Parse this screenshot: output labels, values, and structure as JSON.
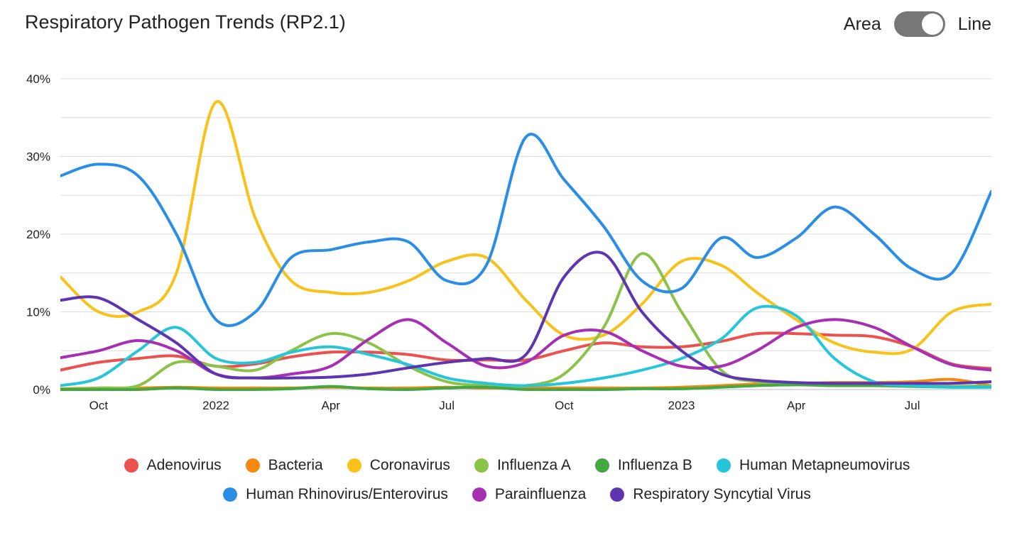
{
  "header": {
    "title": "Respiratory Pathogen Trends (RP2.1)",
    "toggle_left": "Area",
    "toggle_right": "Line",
    "toggle_state": "Line"
  },
  "chart_data": {
    "type": "line",
    "title": "Respiratory Pathogen Trends (RP2.1)",
    "xlabel": "",
    "ylabel": "",
    "x_range": [
      "2021-09-01",
      "2023-09-01"
    ],
    "ylim": [
      0,
      40
    ],
    "y_ticks": [
      0,
      10,
      20,
      30,
      40
    ],
    "y_tick_labels": [
      "0%",
      "10%",
      "20%",
      "30%",
      "40%"
    ],
    "x_ticks": [
      {
        "date": "2021-10-01",
        "label": "Oct"
      },
      {
        "date": "2022-01-01",
        "label": "2022"
      },
      {
        "date": "2022-04-01",
        "label": "Apr"
      },
      {
        "date": "2022-07-01",
        "label": "Jul"
      },
      {
        "date": "2022-10-01",
        "label": "Oct"
      },
      {
        "date": "2023-01-01",
        "label": "2023"
      },
      {
        "date": "2023-04-01",
        "label": "Apr"
      },
      {
        "date": "2023-07-01",
        "label": "Jul"
      }
    ],
    "grid": true,
    "legend_position": "bottom",
    "series": [
      {
        "name": "Adenovirus",
        "color": "#e9524f",
        "points": [
          [
            "2021-09-01",
            2.5
          ],
          [
            "2021-10-01",
            3.5
          ],
          [
            "2021-11-01",
            4.0
          ],
          [
            "2021-12-01",
            4.3
          ],
          [
            "2022-01-01",
            3.0
          ],
          [
            "2022-02-01",
            3.3
          ],
          [
            "2022-03-01",
            4.2
          ],
          [
            "2022-04-01",
            4.8
          ],
          [
            "2022-05-01",
            4.8
          ],
          [
            "2022-06-01",
            4.5
          ],
          [
            "2022-07-01",
            3.8
          ],
          [
            "2022-08-01",
            3.8
          ],
          [
            "2022-09-01",
            3.8
          ],
          [
            "2022-10-01",
            5.0
          ],
          [
            "2022-11-01",
            6.0
          ],
          [
            "2022-12-01",
            5.5
          ],
          [
            "2023-01-01",
            5.5
          ],
          [
            "2023-02-01",
            6.2
          ],
          [
            "2023-03-01",
            7.2
          ],
          [
            "2023-04-01",
            7.2
          ],
          [
            "2023-05-01",
            7.0
          ],
          [
            "2023-06-01",
            6.8
          ],
          [
            "2023-07-01",
            5.5
          ],
          [
            "2023-08-01",
            3.3
          ],
          [
            "2023-09-01",
            2.7
          ]
        ]
      },
      {
        "name": "Bacteria",
        "color": "#f5890f",
        "points": [
          [
            "2021-09-01",
            0.1
          ],
          [
            "2021-10-01",
            0.2
          ],
          [
            "2021-11-01",
            0.2
          ],
          [
            "2021-12-01",
            0.3
          ],
          [
            "2022-01-01",
            0.2
          ],
          [
            "2022-02-01",
            0.2
          ],
          [
            "2022-03-01",
            0.2
          ],
          [
            "2022-04-01",
            0.3
          ],
          [
            "2022-05-01",
            0.2
          ],
          [
            "2022-06-01",
            0.2
          ],
          [
            "2022-07-01",
            0.3
          ],
          [
            "2022-08-01",
            0.2
          ],
          [
            "2022-09-01",
            0.2
          ],
          [
            "2022-10-01",
            0.2
          ],
          [
            "2022-11-01",
            0.2
          ],
          [
            "2022-12-01",
            0.2
          ],
          [
            "2023-01-01",
            0.3
          ],
          [
            "2023-02-01",
            0.5
          ],
          [
            "2023-03-01",
            0.7
          ],
          [
            "2023-04-01",
            0.8
          ],
          [
            "2023-05-01",
            0.9
          ],
          [
            "2023-06-01",
            0.9
          ],
          [
            "2023-07-01",
            1.0
          ],
          [
            "2023-08-01",
            1.3
          ],
          [
            "2023-09-01",
            0.5
          ]
        ]
      },
      {
        "name": "Coronavirus",
        "color": "#f8c21a",
        "points": [
          [
            "2021-09-01",
            14.5
          ],
          [
            "2021-10-01",
            10.0
          ],
          [
            "2021-11-01",
            10.0
          ],
          [
            "2021-12-01",
            15.0
          ],
          [
            "2022-01-01",
            37.0
          ],
          [
            "2022-02-01",
            22.0
          ],
          [
            "2022-03-01",
            14.0
          ],
          [
            "2022-04-01",
            12.5
          ],
          [
            "2022-05-01",
            12.5
          ],
          [
            "2022-06-01",
            14.0
          ],
          [
            "2022-07-01",
            16.5
          ],
          [
            "2022-08-01",
            17.0
          ],
          [
            "2022-09-01",
            11.5
          ],
          [
            "2022-10-01",
            7.0
          ],
          [
            "2022-11-01",
            7.0
          ],
          [
            "2022-12-01",
            11.0
          ],
          [
            "2023-01-01",
            16.5
          ],
          [
            "2023-02-01",
            16.0
          ],
          [
            "2023-03-01",
            12.5
          ],
          [
            "2023-04-01",
            9.0
          ],
          [
            "2023-05-01",
            6.0
          ],
          [
            "2023-06-01",
            4.8
          ],
          [
            "2023-07-01",
            5.2
          ],
          [
            "2023-08-01",
            10.0
          ],
          [
            "2023-09-01",
            11.0
          ]
        ]
      },
      {
        "name": "Influenza A",
        "color": "#8bc34a",
        "points": [
          [
            "2021-09-01",
            0.0
          ],
          [
            "2021-10-01",
            0.2
          ],
          [
            "2021-11-01",
            0.5
          ],
          [
            "2021-12-01",
            3.5
          ],
          [
            "2022-01-01",
            3.0
          ],
          [
            "2022-02-01",
            2.5
          ],
          [
            "2022-03-01",
            5.0
          ],
          [
            "2022-04-01",
            7.2
          ],
          [
            "2022-05-01",
            6.0
          ],
          [
            "2022-06-01",
            3.0
          ],
          [
            "2022-07-01",
            1.0
          ],
          [
            "2022-08-01",
            0.5
          ],
          [
            "2022-09-01",
            0.5
          ],
          [
            "2022-10-01",
            2.0
          ],
          [
            "2022-11-01",
            8.0
          ],
          [
            "2022-12-01",
            17.5
          ],
          [
            "2023-01-01",
            10.0
          ],
          [
            "2023-02-01",
            2.5
          ],
          [
            "2023-03-01",
            1.0
          ],
          [
            "2023-04-01",
            0.8
          ],
          [
            "2023-05-01",
            0.5
          ],
          [
            "2023-06-01",
            0.6
          ],
          [
            "2023-07-01",
            0.5
          ],
          [
            "2023-08-01",
            0.4
          ],
          [
            "2023-09-01",
            0.5
          ]
        ]
      },
      {
        "name": "Influenza B",
        "color": "#43a843",
        "points": [
          [
            "2021-09-01",
            0.0
          ],
          [
            "2021-10-01",
            0.0
          ],
          [
            "2021-11-01",
            0.0
          ],
          [
            "2021-12-01",
            0.2
          ],
          [
            "2022-01-01",
            0.0
          ],
          [
            "2022-02-01",
            0.0
          ],
          [
            "2022-03-01",
            0.1
          ],
          [
            "2022-04-01",
            0.4
          ],
          [
            "2022-05-01",
            0.1
          ],
          [
            "2022-06-01",
            0.0
          ],
          [
            "2022-07-01",
            0.2
          ],
          [
            "2022-08-01",
            0.3
          ],
          [
            "2022-09-01",
            0.0
          ],
          [
            "2022-10-01",
            0.0
          ],
          [
            "2022-11-01",
            0.0
          ],
          [
            "2022-12-01",
            0.1
          ],
          [
            "2023-01-01",
            0.1
          ],
          [
            "2023-02-01",
            0.3
          ],
          [
            "2023-03-01",
            0.5
          ],
          [
            "2023-04-01",
            0.6
          ],
          [
            "2023-05-01",
            0.5
          ],
          [
            "2023-06-01",
            0.5
          ],
          [
            "2023-07-01",
            0.4
          ],
          [
            "2023-08-01",
            0.3
          ],
          [
            "2023-09-01",
            0.3
          ]
        ]
      },
      {
        "name": "Human Metapneumovirus",
        "color": "#26c6da",
        "points": [
          [
            "2021-09-01",
            0.5
          ],
          [
            "2021-10-01",
            1.5
          ],
          [
            "2021-11-01",
            5.0
          ],
          [
            "2021-12-01",
            8.0
          ],
          [
            "2022-01-01",
            4.0
          ],
          [
            "2022-02-01",
            3.5
          ],
          [
            "2022-03-01",
            4.8
          ],
          [
            "2022-04-01",
            5.5
          ],
          [
            "2022-05-01",
            4.5
          ],
          [
            "2022-06-01",
            3.2
          ],
          [
            "2022-07-01",
            1.5
          ],
          [
            "2022-08-01",
            0.8
          ],
          [
            "2022-09-01",
            0.5
          ],
          [
            "2022-10-01",
            0.8
          ],
          [
            "2022-11-01",
            1.5
          ],
          [
            "2022-12-01",
            2.5
          ],
          [
            "2023-01-01",
            4.0
          ],
          [
            "2023-02-01",
            6.5
          ],
          [
            "2023-03-01",
            10.5
          ],
          [
            "2023-04-01",
            9.5
          ],
          [
            "2023-05-01",
            4.0
          ],
          [
            "2023-06-01",
            1.0
          ],
          [
            "2023-07-01",
            0.5
          ],
          [
            "2023-08-01",
            0.3
          ],
          [
            "2023-09-01",
            0.3
          ]
        ]
      },
      {
        "name": "Human Rhinovirus/Enterovirus",
        "color": "#2b8ee6",
        "points": [
          [
            "2021-09-01",
            27.5
          ],
          [
            "2021-10-01",
            29.0
          ],
          [
            "2021-11-01",
            27.5
          ],
          [
            "2021-12-01",
            20.0
          ],
          [
            "2022-01-01",
            9.0
          ],
          [
            "2022-02-01",
            10.0
          ],
          [
            "2022-03-01",
            17.0
          ],
          [
            "2022-04-01",
            18.0
          ],
          [
            "2022-05-01",
            19.0
          ],
          [
            "2022-06-01",
            19.0
          ],
          [
            "2022-07-01",
            14.0
          ],
          [
            "2022-08-01",
            16.0
          ],
          [
            "2022-09-01",
            32.5
          ],
          [
            "2022-10-01",
            27.0
          ],
          [
            "2022-11-01",
            21.0
          ],
          [
            "2022-12-01",
            14.0
          ],
          [
            "2023-01-01",
            13.0
          ],
          [
            "2023-02-01",
            19.5
          ],
          [
            "2023-03-01",
            17.0
          ],
          [
            "2023-04-01",
            19.5
          ],
          [
            "2023-05-01",
            23.5
          ],
          [
            "2023-06-01",
            20.0
          ],
          [
            "2023-07-01",
            15.5
          ],
          [
            "2023-08-01",
            15.0
          ],
          [
            "2023-09-01",
            25.5
          ]
        ]
      },
      {
        "name": "Parainfluenza",
        "color": "#a62fb4",
        "points": [
          [
            "2021-09-01",
            4.1
          ],
          [
            "2021-10-01",
            5.0
          ],
          [
            "2021-11-01",
            6.3
          ],
          [
            "2021-12-01",
            5.0
          ],
          [
            "2022-01-01",
            2.0
          ],
          [
            "2022-02-01",
            1.5
          ],
          [
            "2022-03-01",
            2.0
          ],
          [
            "2022-04-01",
            3.0
          ],
          [
            "2022-05-01",
            6.5
          ],
          [
            "2022-06-01",
            9.0
          ],
          [
            "2022-07-01",
            6.0
          ],
          [
            "2022-08-01",
            3.0
          ],
          [
            "2022-09-01",
            3.5
          ],
          [
            "2022-10-01",
            7.0
          ],
          [
            "2022-11-01",
            7.5
          ],
          [
            "2022-12-01",
            5.0
          ],
          [
            "2023-01-01",
            3.0
          ],
          [
            "2023-02-01",
            3.0
          ],
          [
            "2023-03-01",
            5.0
          ],
          [
            "2023-04-01",
            8.0
          ],
          [
            "2023-05-01",
            9.0
          ],
          [
            "2023-06-01",
            8.0
          ],
          [
            "2023-07-01",
            5.5
          ],
          [
            "2023-08-01",
            3.2
          ],
          [
            "2023-09-01",
            2.5
          ]
        ]
      },
      {
        "name": "Respiratory Syncytial Virus",
        "color": "#5e35b1",
        "points": [
          [
            "2021-09-01",
            11.5
          ],
          [
            "2021-10-01",
            11.8
          ],
          [
            "2021-11-01",
            9.0
          ],
          [
            "2021-12-01",
            6.0
          ],
          [
            "2022-01-01",
            2.0
          ],
          [
            "2022-02-01",
            1.5
          ],
          [
            "2022-03-01",
            1.5
          ],
          [
            "2022-04-01",
            1.6
          ],
          [
            "2022-05-01",
            2.0
          ],
          [
            "2022-06-01",
            2.8
          ],
          [
            "2022-07-01",
            3.5
          ],
          [
            "2022-08-01",
            4.0
          ],
          [
            "2022-09-01",
            4.5
          ],
          [
            "2022-10-01",
            14.5
          ],
          [
            "2022-11-01",
            17.5
          ],
          [
            "2022-12-01",
            10.0
          ],
          [
            "2023-01-01",
            5.0
          ],
          [
            "2023-02-01",
            2.0
          ],
          [
            "2023-03-01",
            1.2
          ],
          [
            "2023-04-01",
            0.9
          ],
          [
            "2023-05-01",
            0.8
          ],
          [
            "2023-06-01",
            0.8
          ],
          [
            "2023-07-01",
            0.8
          ],
          [
            "2023-08-01",
            0.8
          ],
          [
            "2023-09-01",
            1.0
          ]
        ]
      }
    ]
  }
}
